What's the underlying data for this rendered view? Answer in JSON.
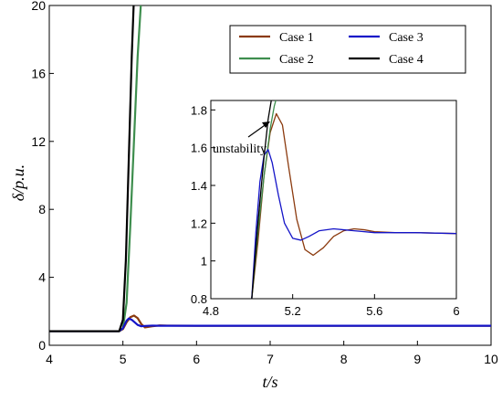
{
  "chart_data": [
    {
      "type": "line",
      "panel": "main",
      "xlabel": "t/s",
      "ylabel": "δ/p.u.",
      "xlim": [
        4,
        10
      ],
      "ylim": [
        0,
        20
      ],
      "xticks": [
        "4",
        "5",
        "6",
        "7",
        "8",
        "9",
        "10"
      ],
      "yticks": [
        "0",
        "4",
        "8",
        "12",
        "16",
        "20"
      ],
      "grid": false,
      "legend": {
        "placement": "top-right",
        "columns": 2
      },
      "series": [
        {
          "name": "Case 1",
          "color": "#8B3A0E",
          "x": [
            4,
            4.95,
            5.0,
            5.05,
            5.1,
            5.15,
            5.2,
            5.25,
            5.3,
            5.4,
            5.5,
            5.6,
            6,
            10
          ],
          "y": [
            0.83,
            0.83,
            0.95,
            1.35,
            1.65,
            1.75,
            1.6,
            1.25,
            1.05,
            1.12,
            1.17,
            1.16,
            1.15,
            1.15
          ]
        },
        {
          "name": "Case 2",
          "color": "#3E8E4E",
          "x": [
            4,
            4.95,
            5.0,
            5.05,
            5.1,
            5.15,
            5.2,
            5.25
          ],
          "y": [
            0.83,
            0.83,
            1.0,
            2.5,
            7.0,
            12.0,
            17.0,
            20.5
          ]
        },
        {
          "name": "Case 3",
          "color": "#1414C8",
          "x": [
            4,
            4.95,
            5.0,
            5.05,
            5.08,
            5.12,
            5.2,
            5.25,
            5.3,
            5.4,
            5.5,
            6,
            10
          ],
          "y": [
            0.83,
            0.83,
            1.0,
            1.45,
            1.58,
            1.5,
            1.2,
            1.12,
            1.14,
            1.16,
            1.15,
            1.15,
            1.15
          ]
        },
        {
          "name": "Case 4",
          "color": "#000000",
          "x": [
            4,
            4.95,
            5.0,
            5.04,
            5.08,
            5.12,
            5.15
          ],
          "y": [
            0.83,
            0.83,
            1.5,
            5.0,
            11.0,
            17.0,
            20.5
          ]
        }
      ]
    },
    {
      "type": "line",
      "panel": "inset",
      "xlim": [
        4.8,
        6
      ],
      "ylim": [
        0.8,
        1.85
      ],
      "xticks": [
        "4.8",
        "5.2",
        "5.6",
        "6"
      ],
      "yticks": [
        "0.8",
        "1",
        "1.2",
        "1.4",
        "1.6",
        "1.8"
      ],
      "annotation": "unstability",
      "series": [
        {
          "color": "#8B3A0E",
          "x": [
            5.0,
            5.03,
            5.06,
            5.09,
            5.12,
            5.15,
            5.18,
            5.22,
            5.26,
            5.3,
            5.35,
            5.4,
            5.45,
            5.5,
            5.55,
            5.6,
            5.7,
            5.8,
            6.0
          ],
          "y": [
            0.8,
            1.1,
            1.45,
            1.68,
            1.78,
            1.72,
            1.5,
            1.22,
            1.06,
            1.03,
            1.07,
            1.13,
            1.16,
            1.17,
            1.165,
            1.155,
            1.15,
            1.15,
            1.145
          ]
        },
        {
          "color": "#3E8E4E",
          "x": [
            5.0,
            5.03,
            5.06,
            5.09,
            5.11,
            5.13
          ],
          "y": [
            0.8,
            1.15,
            1.45,
            1.7,
            1.82,
            1.9
          ]
        },
        {
          "color": "#1414C8",
          "x": [
            5.0,
            5.02,
            5.04,
            5.06,
            5.08,
            5.1,
            5.13,
            5.16,
            5.2,
            5.24,
            5.28,
            5.33,
            5.4,
            5.5,
            5.6,
            5.8,
            6.0
          ],
          "y": [
            0.8,
            1.15,
            1.42,
            1.56,
            1.59,
            1.52,
            1.35,
            1.2,
            1.12,
            1.11,
            1.13,
            1.16,
            1.17,
            1.16,
            1.15,
            1.15,
            1.145
          ]
        },
        {
          "color": "#000000",
          "x": [
            5.0,
            5.03,
            5.06,
            5.08,
            5.1,
            5.12
          ],
          "y": [
            0.8,
            1.2,
            1.55,
            1.75,
            1.88,
            1.95
          ]
        }
      ]
    }
  ]
}
